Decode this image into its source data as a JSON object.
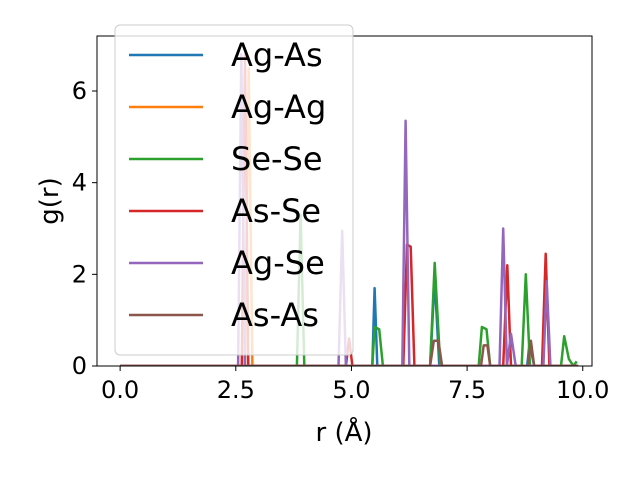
{
  "chart_data": {
    "type": "line",
    "xlabel": "r (Å)",
    "ylabel": "g(r)",
    "xlim": [
      -0.5,
      10.2
    ],
    "ylim": [
      0,
      7.2
    ],
    "xticks": [
      0.0,
      2.5,
      5.0,
      7.5,
      10.0
    ],
    "xtick_labels": [
      "0.0",
      "2.5",
      "5.0",
      "7.5",
      "10.0"
    ],
    "yticks": [
      0,
      2,
      4,
      6
    ],
    "ytick_labels": [
      "0",
      "2",
      "4",
      "6"
    ],
    "grid": false,
    "legend_position": "top-left",
    "series": [
      {
        "name": "Ag-As",
        "color": "#1f77b4",
        "points": [
          [
            0,
            0
          ],
          [
            5.45,
            0
          ],
          [
            5.5,
            1.7
          ],
          [
            5.56,
            0
          ],
          [
            6.7,
            0
          ],
          [
            6.8,
            1.9
          ],
          [
            6.9,
            0
          ],
          [
            8.8,
            0
          ],
          [
            8.85,
            0.5
          ],
          [
            8.95,
            0
          ],
          [
            9.9,
            0
          ]
        ]
      },
      {
        "name": "Ag-Ag",
        "color": "#ff7f0e",
        "points": [
          [
            0,
            0
          ],
          [
            2.7,
            0
          ],
          [
            2.78,
            6.5
          ],
          [
            2.86,
            0
          ],
          [
            9.9,
            0
          ]
        ]
      },
      {
        "name": "Se-Se",
        "color": "#2ca02c",
        "points": [
          [
            0,
            0
          ],
          [
            3.82,
            0
          ],
          [
            3.9,
            3.3
          ],
          [
            3.98,
            0
          ],
          [
            5.45,
            0
          ],
          [
            5.5,
            0.85
          ],
          [
            5.6,
            0.8
          ],
          [
            5.68,
            0
          ],
          [
            6.7,
            0
          ],
          [
            6.8,
            2.25
          ],
          [
            6.92,
            0
          ],
          [
            7.75,
            0
          ],
          [
            7.82,
            0.85
          ],
          [
            7.92,
            0.8
          ],
          [
            8.0,
            0
          ],
          [
            8.68,
            0
          ],
          [
            8.77,
            2.0
          ],
          [
            8.86,
            0
          ],
          [
            9.53,
            0
          ],
          [
            9.6,
            0.65
          ],
          [
            9.7,
            0.15
          ],
          [
            9.8,
            0
          ],
          [
            9.87,
            0.1
          ]
        ]
      },
      {
        "name": "As-Se",
        "color": "#d62728",
        "points": [
          [
            0,
            0
          ],
          [
            2.63,
            0
          ],
          [
            2.7,
            6.8
          ],
          [
            2.77,
            0
          ],
          [
            4.88,
            0
          ],
          [
            4.95,
            0.6
          ],
          [
            5.02,
            0
          ],
          [
            6.12,
            0
          ],
          [
            6.2,
            2.65
          ],
          [
            6.28,
            2.6
          ],
          [
            6.36,
            0
          ],
          [
            8.28,
            0
          ],
          [
            8.37,
            2.2
          ],
          [
            8.45,
            0
          ],
          [
            9.12,
            0
          ],
          [
            9.2,
            2.45
          ],
          [
            9.28,
            0
          ],
          [
            9.9,
            0
          ]
        ]
      },
      {
        "name": "Ag-Se",
        "color": "#9467bd",
        "points": [
          [
            0,
            0
          ],
          [
            2.55,
            0
          ],
          [
            2.62,
            6.8
          ],
          [
            2.7,
            0
          ],
          [
            4.72,
            0
          ],
          [
            4.8,
            2.95
          ],
          [
            4.88,
            0
          ],
          [
            6.1,
            0
          ],
          [
            6.17,
            5.35
          ],
          [
            6.25,
            0
          ],
          [
            8.2,
            0
          ],
          [
            8.28,
            3.0
          ],
          [
            8.36,
            0
          ],
          [
            8.45,
            0.7
          ],
          [
            8.55,
            0
          ],
          [
            9.15,
            0
          ],
          [
            9.22,
            1.85
          ],
          [
            9.3,
            0
          ],
          [
            9.9,
            0
          ]
        ]
      },
      {
        "name": "As-As",
        "color": "#8c564b",
        "points": [
          [
            0,
            0
          ],
          [
            6.7,
            0
          ],
          [
            6.78,
            0.55
          ],
          [
            6.88,
            0.55
          ],
          [
            6.96,
            0
          ],
          [
            7.8,
            0
          ],
          [
            7.86,
            0.45
          ],
          [
            7.94,
            0.45
          ],
          [
            8.0,
            0
          ],
          [
            8.82,
            0
          ],
          [
            8.88,
            0.55
          ],
          [
            8.95,
            0
          ],
          [
            9.9,
            0
          ]
        ]
      }
    ]
  }
}
